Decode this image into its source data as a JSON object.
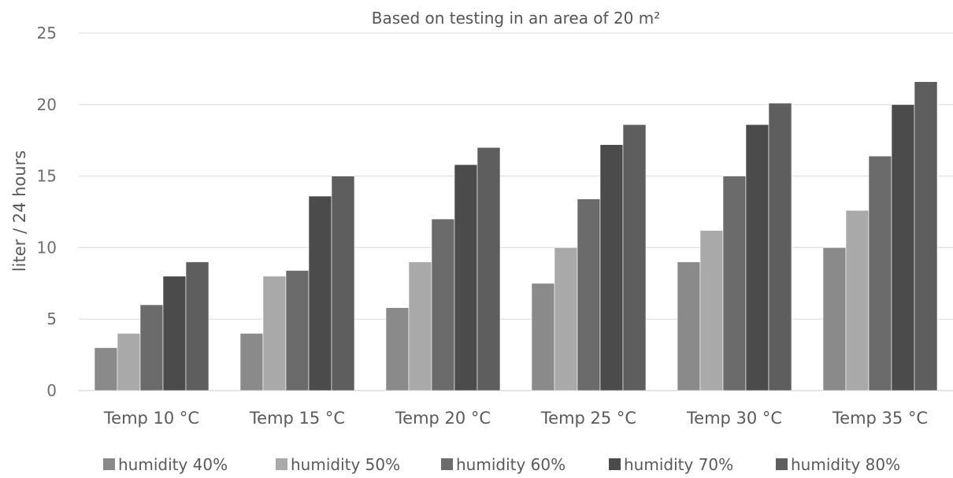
{
  "chart_data": {
    "type": "bar",
    "title": "",
    "subtitle": "Based on testing in an area of 20 m²",
    "xlabel": "",
    "ylabel": "liter / 24 hours",
    "ylim": [
      0,
      25
    ],
    "yticks": [
      0,
      5,
      10,
      15,
      20,
      25
    ],
    "grid": true,
    "legend_position": "bottom",
    "categories": [
      "Temp 10 °C",
      "Temp 15 °C",
      "Temp 20 °C",
      "Temp 25 °C",
      "Temp 30 °C",
      "Temp 35 °C"
    ],
    "series": [
      {
        "name": "humidity 40%",
        "color": "#8a8a8a",
        "values": [
          3.0,
          4.0,
          5.8,
          7.5,
          9.0,
          10.0
        ]
      },
      {
        "name": "humidity 50%",
        "color": "#a9a9a9",
        "values": [
          4.0,
          8.0,
          9.0,
          10.0,
          11.2,
          12.6
        ]
      },
      {
        "name": "humidity 60%",
        "color": "#6b6b6b",
        "values": [
          6.0,
          8.4,
          12.0,
          13.4,
          15.0,
          16.4
        ]
      },
      {
        "name": "humidity 70%",
        "color": "#4b4b4b",
        "values": [
          8.0,
          13.6,
          15.8,
          17.2,
          18.6,
          20.0
        ]
      },
      {
        "name": "humidity 80%",
        "color": "#5e5e5e",
        "values": [
          9.0,
          15.0,
          17.0,
          18.6,
          20.1,
          21.6
        ]
      }
    ]
  }
}
